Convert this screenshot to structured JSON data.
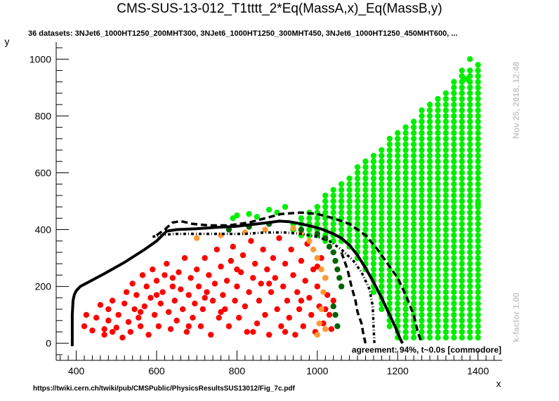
{
  "header": {
    "title": "CMS-SUS-13-012_T1tttt_2*Eq(MassA,x)_Eq(MassB,y)",
    "subtitle": "36 datasets: 3NJet6_1000HT1250_200MHT300, 3NJet6_1000HT1250_300MHT450, 3NJet6_1000HT1250_450MHT600,  ...",
    "timestamp": "Nov 25, 2018, 12:48",
    "kfactor": "k-factor 1.00",
    "footer_url": "https://twiki.cern.ch/twiki/pub/CMSPublic/PhysicsResultsSUS13012/Fig_7c.pdf",
    "agreement": "agreement: 94%, t~0.0s [commodore]"
  },
  "colors": {
    "excluded": "#ff0000",
    "excluded_border": "#ff9933",
    "allowed_border": "#006400",
    "allowed": "#00ee00",
    "curves": "#000000"
  },
  "chart_data": {
    "type": "scatter",
    "xlabel": "x",
    "ylabel": "y",
    "xlim": [
      350,
      1460
    ],
    "ylim": [
      -60,
      1060
    ],
    "xticks": [
      400,
      600,
      800,
      1000,
      1200,
      1400
    ],
    "yticks": [
      0,
      200,
      400,
      600,
      800,
      1000
    ],
    "grid": false,
    "series": [
      {
        "key": "official",
        "style": "solid",
        "points": [
          [
            390,
            -10
          ],
          [
            390,
            100
          ],
          [
            392,
            150
          ],
          [
            395,
            170
          ],
          [
            400,
            185
          ],
          [
            410,
            200
          ],
          [
            430,
            215
          ],
          [
            470,
            245
          ],
          [
            520,
            285
          ],
          [
            570,
            330
          ],
          [
            600,
            360
          ],
          [
            625,
            395
          ],
          [
            650,
            400
          ],
          [
            700,
            403
          ],
          [
            750,
            408
          ],
          [
            800,
            412
          ],
          [
            850,
            420
          ],
          [
            880,
            425
          ],
          [
            905,
            430
          ],
          [
            930,
            428
          ],
          [
            960,
            420
          ],
          [
            985,
            412
          ],
          [
            1010,
            402
          ],
          [
            1040,
            385
          ],
          [
            1060,
            370
          ],
          [
            1080,
            345
          ],
          [
            1100,
            310
          ],
          [
            1120,
            265
          ],
          [
            1140,
            215
          ],
          [
            1160,
            160
          ],
          [
            1180,
            100
          ],
          [
            1195,
            55
          ],
          [
            1205,
            20
          ],
          [
            1212,
            0
          ]
        ]
      },
      {
        "key": "obs_plus",
        "style": "dashed",
        "points": [
          [
            600,
            380
          ],
          [
            620,
            400
          ],
          [
            640,
            425
          ],
          [
            660,
            430
          ],
          [
            690,
            420
          ],
          [
            730,
            415
          ],
          [
            780,
            415
          ],
          [
            830,
            425
          ],
          [
            870,
            440
          ],
          [
            910,
            455
          ],
          [
            960,
            460
          ],
          [
            1000,
            455
          ],
          [
            1040,
            440
          ],
          [
            1080,
            420
          ],
          [
            1120,
            380
          ],
          [
            1150,
            330
          ],
          [
            1180,
            270
          ],
          [
            1200,
            230
          ],
          [
            1220,
            170
          ],
          [
            1240,
            100
          ],
          [
            1250,
            40
          ],
          [
            1260,
            0
          ]
        ]
      },
      {
        "key": "obs_minus",
        "style": "dashdot",
        "points": [
          [
            590,
            375
          ],
          [
            640,
            385
          ],
          [
            700,
            385
          ],
          [
            760,
            385
          ],
          [
            820,
            385
          ],
          [
            870,
            390
          ],
          [
            920,
            390
          ],
          [
            960,
            385
          ],
          [
            1000,
            375
          ],
          [
            1030,
            360
          ],
          [
            1060,
            330
          ],
          [
            1090,
            290
          ],
          [
            1110,
            250
          ],
          [
            1130,
            190
          ],
          [
            1138,
            130
          ],
          [
            1140,
            60
          ],
          [
            1142,
            0
          ]
        ]
      },
      {
        "key": "exp",
        "style": "dashed",
        "points": [
          [
            1060,
            320
          ],
          [
            1075,
            260
          ],
          [
            1085,
            200
          ],
          [
            1095,
            150
          ],
          [
            1100,
            110
          ],
          [
            1110,
            70
          ],
          [
            1115,
            30
          ],
          [
            1120,
            0
          ]
        ]
      }
    ],
    "points_red": [
      [
        420,
        60
      ],
      [
        425,
        100
      ],
      [
        440,
        45
      ],
      [
        450,
        90
      ],
      [
        460,
        135
      ],
      [
        470,
        30
      ],
      [
        480,
        80
      ],
      [
        480,
        120
      ],
      [
        490,
        150
      ],
      [
        500,
        55
      ],
      [
        505,
        100
      ],
      [
        515,
        20
      ],
      [
        520,
        140
      ],
      [
        525,
        180
      ],
      [
        530,
        75
      ],
      [
        535,
        40
      ],
      [
        540,
        210
      ],
      [
        545,
        120
      ],
      [
        550,
        170
      ],
      [
        555,
        90
      ],
      [
        560,
        60
      ],
      [
        565,
        240
      ],
      [
        570,
        130
      ],
      [
        575,
        200
      ],
      [
        580,
        30
      ],
      [
        585,
        160
      ],
      [
        590,
        260
      ],
      [
        595,
        100
      ],
      [
        600,
        220
      ],
      [
        605,
        60
      ],
      [
        610,
        140
      ],
      [
        615,
        180
      ],
      [
        620,
        240
      ],
      [
        625,
        280
      ],
      [
        630,
        110
      ],
      [
        635,
        50
      ],
      [
        640,
        200
      ],
      [
        645,
        150
      ],
      [
        650,
        80
      ],
      [
        655,
        250
      ],
      [
        660,
        190
      ],
      [
        665,
        120
      ],
      [
        670,
        300
      ],
      [
        675,
        40
      ],
      [
        680,
        170
      ],
      [
        685,
        230
      ],
      [
        690,
        90
      ],
      [
        695,
        140
      ],
      [
        700,
        260
      ],
      [
        705,
        200
      ],
      [
        710,
        60
      ],
      [
        715,
        120
      ],
      [
        720,
        300
      ],
      [
        725,
        180
      ],
      [
        730,
        240
      ],
      [
        735,
        30
      ],
      [
        740,
        150
      ],
      [
        745,
        210
      ],
      [
        750,
        330
      ],
      [
        755,
        90
      ],
      [
        760,
        270
      ],
      [
        765,
        170
      ],
      [
        770,
        120
      ],
      [
        775,
        220
      ],
      [
        780,
        60
      ],
      [
        785,
        290
      ],
      [
        790,
        340
      ],
      [
        795,
        150
      ],
      [
        800,
        200
      ],
      [
        805,
        90
      ],
      [
        810,
        250
      ],
      [
        815,
        310
      ],
      [
        820,
        130
      ],
      [
        825,
        40
      ],
      [
        830,
        180
      ],
      [
        835,
        360
      ],
      [
        840,
        230
      ],
      [
        845,
        280
      ],
      [
        850,
        70
      ],
      [
        855,
        150
      ],
      [
        860,
        210
      ],
      [
        865,
        330
      ],
      [
        870,
        100
      ],
      [
        875,
        260
      ],
      [
        880,
        30
      ],
      [
        885,
        180
      ],
      [
        890,
        300
      ],
      [
        895,
        230
      ],
      [
        900,
        120
      ],
      [
        905,
        370
      ],
      [
        910,
        60
      ],
      [
        915,
        200
      ],
      [
        920,
        280
      ],
      [
        925,
        150
      ],
      [
        930,
        90
      ],
      [
        935,
        330
      ],
      [
        940,
        240
      ],
      [
        945,
        30
      ],
      [
        950,
        180
      ],
      [
        955,
        120
      ],
      [
        960,
        290
      ],
      [
        965,
        60
      ],
      [
        970,
        220
      ],
      [
        975,
        350
      ],
      [
        980,
        160
      ],
      [
        985,
        100
      ],
      [
        990,
        260
      ],
      [
        995,
        40
      ],
      [
        1000,
        200
      ],
      [
        1005,
        130
      ],
      [
        1010,
        300
      ],
      [
        1015,
        70
      ],
      [
        1020,
        230
      ],
      [
        1025,
        170
      ],
      [
        1030,
        100
      ],
      [
        1035,
        50
      ],
      [
        1040,
        150
      ],
      [
        470,
        50
      ],
      [
        490,
        40
      ],
      [
        560,
        110
      ],
      [
        600,
        170
      ],
      [
        640,
        230
      ],
      [
        680,
        60
      ],
      [
        720,
        160
      ],
      [
        760,
        110
      ],
      [
        800,
        260
      ],
      [
        840,
        40
      ],
      [
        880,
        210
      ],
      [
        920,
        40
      ],
      [
        960,
        150
      ],
      [
        1000,
        270
      ],
      [
        1020,
        120
      ]
    ],
    "points_orange": [
      [
        700,
        370
      ],
      [
        760,
        380
      ],
      [
        820,
        390
      ],
      [
        870,
        400
      ],
      [
        940,
        405
      ],
      [
        960,
        390
      ],
      [
        980,
        360
      ],
      [
        990,
        330
      ],
      [
        1000,
        300
      ],
      [
        1010,
        260
      ],
      [
        1020,
        230
      ],
      [
        1015,
        180
      ],
      [
        1010,
        120
      ],
      [
        1005,
        70
      ],
      [
        1000,
        30
      ],
      [
        1020,
        50
      ]
    ],
    "points_darkgreen": [
      [
        780,
        400
      ],
      [
        830,
        410
      ],
      [
        880,
        420
      ],
      [
        960,
        400
      ],
      [
        1000,
        385
      ],
      [
        1020,
        370
      ],
      [
        1030,
        340
      ],
      [
        1040,
        320
      ],
      [
        1045,
        290
      ],
      [
        1050,
        260
      ],
      [
        1055,
        230
      ],
      [
        1060,
        200
      ],
      [
        1040,
        130
      ],
      [
        1045,
        100
      ],
      [
        1050,
        60
      ]
    ],
    "points_green_params": {
      "x_start": 940,
      "x_end": 1400,
      "x_step": 20,
      "y_step": 20,
      "y_min": 10
    }
  }
}
